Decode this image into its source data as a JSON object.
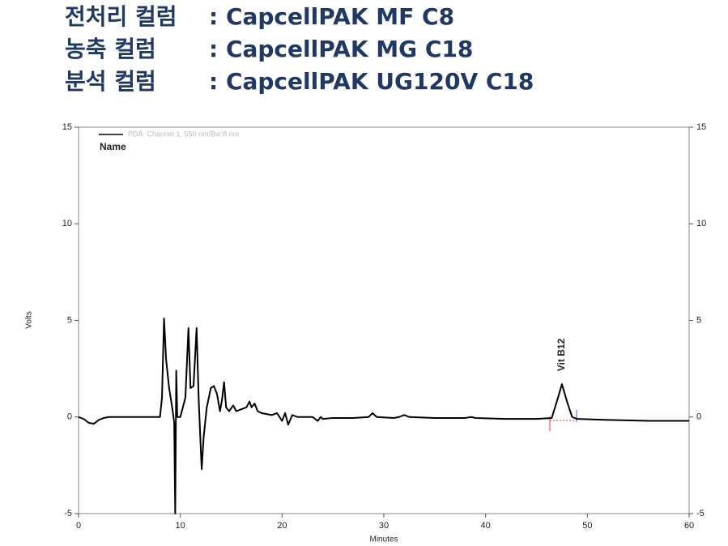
{
  "header": [
    {
      "label": "전처리 컬럼",
      "value": ": CapcellPAK MF C8"
    },
    {
      "label": "농축 컬럼",
      "value": ": CapcellPAK MG C18"
    },
    {
      "label": "분석 컬럼",
      "value": ": CapcellPAK UG120V C18"
    }
  ],
  "chart_data": {
    "type": "line",
    "xlabel": "Minutes",
    "ylabel": "Volts",
    "legend_title": "Name",
    "annotation": "Vit B12",
    "xlim": [
      0,
      60
    ],
    "xticks": [
      0,
      10,
      20,
      30,
      40,
      50,
      60
    ],
    "ylim": [
      -5,
      15
    ],
    "yticks": [
      -5,
      0,
      5,
      10,
      15
    ],
    "y2lim": [
      -5,
      15
    ],
    "y2ticks": [
      -5,
      0,
      5,
      10,
      15
    ],
    "x": [
      0,
      0.5,
      1,
      1.5,
      2,
      2.5,
      3,
      5,
      7,
      8,
      8.2,
      8.4,
      8.6,
      8.9,
      9.2,
      9.4,
      9.5,
      9.6,
      9.7,
      10,
      10.5,
      10.8,
      11,
      11.3,
      11.6,
      11.8,
      12,
      12.1,
      12.3,
      12.6,
      13,
      13.3,
      13.6,
      13.9,
      14.1,
      14.3,
      14.5,
      14.8,
      15.2,
      15.5,
      16,
      16.5,
      16.8,
      17,
      17.3,
      17.6,
      18,
      19,
      19.5,
      20,
      20.3,
      20.6,
      21,
      21.5,
      22,
      23,
      23.5,
      23.8,
      24,
      25,
      27,
      28.5,
      28.9,
      29.3,
      31,
      31.5,
      32,
      32.5,
      35,
      38,
      38.6,
      39,
      42,
      45,
      46.5,
      47,
      47.5,
      48,
      48.5,
      49,
      52,
      56,
      60
    ],
    "series": [
      {
        "name": "PDA: Channel 1, 550 nm/Bw:8 nm",
        "color": "#000000",
        "values": [
          0,
          -0.1,
          -0.3,
          -0.35,
          -0.15,
          -0.05,
          0,
          0,
          0,
          0,
          1,
          5.1,
          3,
          1.5,
          0.5,
          -0.3,
          -5,
          2.4,
          0,
          0,
          1,
          4.6,
          1.5,
          1.6,
          4.6,
          1,
          -1.5,
          -2.7,
          -1,
          0.5,
          1.5,
          1.6,
          1.2,
          0.3,
          0.9,
          1.8,
          0.5,
          0.3,
          0.6,
          0.3,
          0.4,
          0.5,
          0.8,
          0.5,
          0.7,
          0.3,
          0.2,
          0.1,
          0.2,
          -0.2,
          0.2,
          -0.4,
          0.1,
          0,
          0,
          0,
          -0.2,
          0,
          -0.1,
          -0.05,
          -0.05,
          0,
          0.2,
          0,
          -0.05,
          0,
          0.1,
          0,
          -0.05,
          -0.05,
          0,
          -0.05,
          -0.1,
          -0.1,
          -0.05,
          0.8,
          1.7,
          0.8,
          0,
          -0.1,
          -0.15,
          -0.2,
          -0.2
        ]
      }
    ]
  }
}
